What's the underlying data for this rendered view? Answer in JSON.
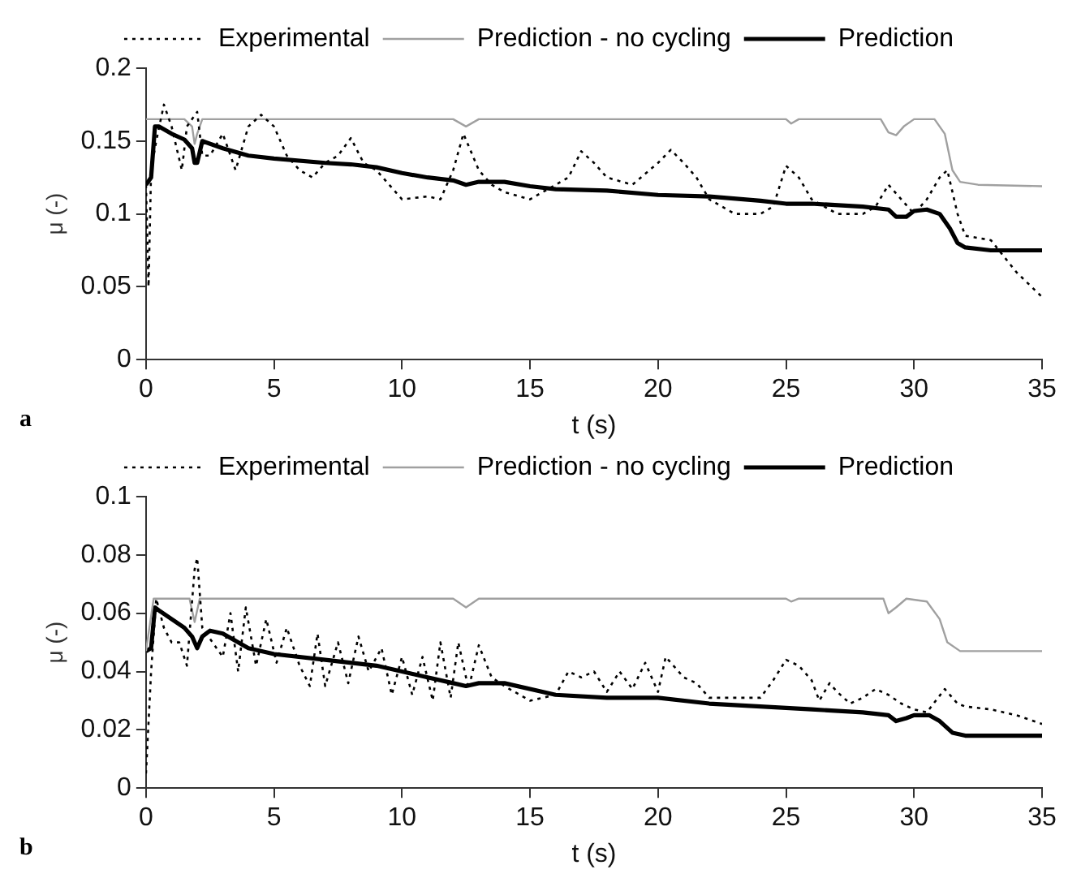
{
  "chart_data": [
    {
      "type": "line",
      "xlabel": "t (s)",
      "ylabel": "μ (-)",
      "annotations": [
        "a"
      ],
      "legend": "top",
      "xlim": [
        0,
        35
      ],
      "xticks": [
        0,
        5,
        10,
        15,
        20,
        25,
        30,
        35
      ],
      "ylim": [
        0,
        0.2
      ],
      "yticks": [
        0,
        0.05,
        0.1,
        0.15,
        0.2
      ],
      "series": [
        {
          "name": "Experimental",
          "color": "#000000",
          "line_style": "dotted",
          "x": [
            0,
            0.1,
            0.2,
            0.4,
            0.7,
            1,
            1.2,
            1.4,
            1.6,
            1.8,
            2,
            2.2,
            2.5,
            3,
            3.5,
            4,
            4.5,
            5,
            5.5,
            6,
            6.5,
            7,
            7.5,
            8,
            8.5,
            9,
            9.5,
            10,
            11,
            11.5,
            12,
            12.4,
            13,
            13.5,
            14,
            15,
            16,
            16.5,
            17,
            17.5,
            18,
            19,
            20,
            20.5,
            21,
            21.5,
            22,
            23,
            24,
            24.5,
            25,
            25.5,
            26,
            27,
            28,
            28.5,
            29,
            29.5,
            30,
            30.5,
            31,
            31.3,
            31.7,
            32,
            33,
            34,
            35
          ],
          "values": [
            0.12,
            0.05,
            0.13,
            0.15,
            0.175,
            0.16,
            0.145,
            0.13,
            0.16,
            0.165,
            0.17,
            0.14,
            0.14,
            0.155,
            0.13,
            0.16,
            0.168,
            0.16,
            0.14,
            0.13,
            0.125,
            0.135,
            0.14,
            0.152,
            0.135,
            0.13,
            0.12,
            0.11,
            0.112,
            0.11,
            0.13,
            0.155,
            0.13,
            0.12,
            0.115,
            0.11,
            0.12,
            0.125,
            0.143,
            0.135,
            0.125,
            0.12,
            0.135,
            0.144,
            0.135,
            0.125,
            0.11,
            0.1,
            0.1,
            0.105,
            0.133,
            0.125,
            0.11,
            0.1,
            0.1,
            0.105,
            0.12,
            0.11,
            0.1,
            0.11,
            0.125,
            0.13,
            0.1,
            0.085,
            0.082,
            0.06,
            0.043
          ]
        },
        {
          "name": "Prediction - no cycling",
          "color": "#a0a0a0",
          "line_style": "solid",
          "x": [
            0,
            1.5,
            1.8,
            1.9,
            2,
            2.2,
            12,
            12.5,
            13,
            25,
            25.2,
            25.5,
            28.7,
            29,
            29.3,
            29.6,
            30,
            30.8,
            31.2,
            31.5,
            31.8,
            32.5,
            35
          ],
          "values": [
            0.165,
            0.165,
            0.16,
            0.148,
            0.155,
            0.165,
            0.165,
            0.16,
            0.165,
            0.165,
            0.162,
            0.165,
            0.165,
            0.156,
            0.154,
            0.16,
            0.165,
            0.165,
            0.155,
            0.13,
            0.122,
            0.12,
            0.119
          ]
        },
        {
          "name": "Prediction",
          "color": "#000000",
          "line_style": "solid",
          "x": [
            0,
            0.2,
            0.35,
            0.5,
            1,
            1.5,
            1.8,
            1.9,
            2,
            2.2,
            3,
            4,
            5,
            7,
            8,
            9,
            10,
            11,
            12,
            12.5,
            13,
            14,
            15,
            16,
            18,
            20,
            22,
            24,
            25,
            26,
            28,
            29,
            29.3,
            29.7,
            30,
            30.5,
            31,
            31.4,
            31.7,
            32,
            33,
            35
          ],
          "values": [
            0.12,
            0.125,
            0.16,
            0.16,
            0.155,
            0.151,
            0.145,
            0.135,
            0.135,
            0.15,
            0.145,
            0.14,
            0.138,
            0.135,
            0.134,
            0.132,
            0.128,
            0.125,
            0.123,
            0.12,
            0.122,
            0.122,
            0.119,
            0.117,
            0.116,
            0.113,
            0.112,
            0.109,
            0.107,
            0.107,
            0.105,
            0.103,
            0.098,
            0.098,
            0.102,
            0.103,
            0.1,
            0.09,
            0.08,
            0.077,
            0.075,
            0.075
          ]
        }
      ]
    },
    {
      "type": "line",
      "xlabel": "t (s)",
      "ylabel": "μ (-)",
      "annotations": [
        "b"
      ],
      "legend": "top",
      "xlim": [
        0,
        35
      ],
      "xticks": [
        0,
        5,
        10,
        15,
        20,
        25,
        30,
        35
      ],
      "ylim": [
        0,
        0.1
      ],
      "yticks": [
        0,
        0.02,
        0.04,
        0.06,
        0.08,
        0.1
      ],
      "series": [
        {
          "name": "Experimental",
          "color": "#000000",
          "line_style": "dotted",
          "x": [
            0,
            0.2,
            0.4,
            0.7,
            1,
            1.3,
            1.6,
            1.9,
            2,
            2.2,
            2.6,
            3,
            3.3,
            3.6,
            3.9,
            4.3,
            4.7,
            5.1,
            5.5,
            6,
            6.4,
            6.7,
            7,
            7.5,
            7.9,
            8.3,
            8.7,
            9.2,
            9.6,
            10,
            10.4,
            10.8,
            11.2,
            11.5,
            11.9,
            12.2,
            12.6,
            13,
            13.5,
            14,
            15,
            16,
            16.5,
            17,
            17.5,
            18,
            18.5,
            19,
            19.5,
            20,
            20.3,
            21,
            21.5,
            22,
            23,
            24,
            24.5,
            25,
            25.5,
            26,
            26.3,
            26.7,
            27,
            27.5,
            28,
            28.5,
            29,
            29.5,
            30,
            30.5,
            31.2,
            31.7,
            32,
            33,
            34,
            35
          ],
          "values": [
            0.005,
            0.04,
            0.065,
            0.055,
            0.05,
            0.05,
            0.042,
            0.075,
            0.079,
            0.055,
            0.05,
            0.045,
            0.06,
            0.04,
            0.062,
            0.042,
            0.058,
            0.043,
            0.055,
            0.042,
            0.035,
            0.053,
            0.035,
            0.05,
            0.036,
            0.052,
            0.04,
            0.048,
            0.032,
            0.045,
            0.032,
            0.045,
            0.03,
            0.05,
            0.031,
            0.05,
            0.034,
            0.049,
            0.038,
            0.035,
            0.03,
            0.032,
            0.04,
            0.038,
            0.04,
            0.033,
            0.04,
            0.034,
            0.043,
            0.033,
            0.045,
            0.038,
            0.036,
            0.031,
            0.031,
            0.031,
            0.037,
            0.044,
            0.042,
            0.037,
            0.03,
            0.036,
            0.033,
            0.029,
            0.031,
            0.034,
            0.032,
            0.029,
            0.027,
            0.026,
            0.034,
            0.029,
            0.028,
            0.027,
            0.025,
            0.022
          ]
        },
        {
          "name": "Prediction - no cycling",
          "color": "#a0a0a0",
          "line_style": "solid",
          "x": [
            0,
            0.3,
            1.7,
            1.9,
            2.1,
            12,
            12.5,
            13,
            25,
            25.2,
            25.5,
            28.8,
            29,
            29.3,
            29.7,
            30.5,
            31,
            31.3,
            31.8,
            35
          ],
          "values": [
            0.047,
            0.065,
            0.065,
            0.057,
            0.065,
            0.065,
            0.062,
            0.065,
            0.065,
            0.064,
            0.065,
            0.065,
            0.06,
            0.062,
            0.065,
            0.064,
            0.058,
            0.05,
            0.047,
            0.047
          ]
        },
        {
          "name": "Prediction",
          "color": "#000000",
          "line_style": "solid",
          "x": [
            0,
            0.2,
            0.35,
            0.5,
            1,
            1.5,
            1.8,
            2,
            2.2,
            2.5,
            3,
            4,
            5,
            7,
            9,
            10,
            11,
            12,
            12.5,
            13,
            14,
            16,
            18,
            20,
            22,
            24,
            26,
            28,
            29,
            29.3,
            29.7,
            30,
            30.6,
            31,
            31.5,
            32,
            35
          ],
          "values": [
            0.047,
            0.048,
            0.062,
            0.061,
            0.058,
            0.055,
            0.052,
            0.048,
            0.052,
            0.054,
            0.053,
            0.048,
            0.046,
            0.044,
            0.042,
            0.04,
            0.038,
            0.036,
            0.035,
            0.036,
            0.036,
            0.032,
            0.031,
            0.031,
            0.029,
            0.028,
            0.027,
            0.026,
            0.025,
            0.023,
            0.024,
            0.025,
            0.025,
            0.023,
            0.019,
            0.018,
            0.018
          ]
        }
      ]
    }
  ]
}
